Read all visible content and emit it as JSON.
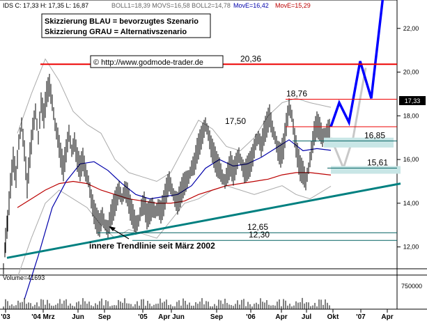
{
  "header": {
    "quote_text": "IDS C: 17,33 H: 17,35 L: 16,87",
    "bands_text": "BOLL1=18,39 MOVS=16,58 BOLL2=14,78",
    "ema1_text": "MovE=16,42",
    "ema2_text": "MovE=15,29"
  },
  "legend": {
    "line1": "Skizzierung BLAU = bevorzugtes Szenario",
    "line2": "Skizzierung GRAU = Alternativszenario"
  },
  "copyright": "© http://www.godmode-trader.de",
  "trendline_label": "innere Trendlinie seit März 2002",
  "volume_label": "Volume=41693",
  "volume_tick": "750000",
  "last_price_label": "17,33",
  "colors": {
    "candles": "#000000",
    "ema_fast": "#0000aa",
    "ema_slow": "#bb0000",
    "bollinger": "#aaaaaa",
    "resistance": "#ee0000",
    "support": "#006060",
    "trendline": "#008080",
    "scenario_blue": "#0000ff",
    "scenario_gray": "#c8c8c8",
    "zone_fill": "#c8e6e6"
  },
  "chart_data": {
    "type": "candlestick",
    "ylim": [
      11,
      23.3
    ],
    "y_ticks": [
      "22,00",
      "20,00",
      "18,00",
      "16,00",
      "14,00",
      "12,00"
    ],
    "y_tick_values": [
      22,
      20,
      18,
      16,
      14,
      12
    ],
    "x_tick_labels": [
      "'03",
      "'04 Mrz",
      "Jun",
      "Sep",
      "'05",
      "Apr Jun",
      "Sep",
      "'06",
      "Apr",
      "Jul",
      "Okt",
      "'07",
      "Apr"
    ],
    "horizontal_levels": [
      {
        "label": "20,36",
        "value": 20.36,
        "kind": "resistance"
      },
      {
        "label": "18,76",
        "value": 18.76,
        "kind": "resistance"
      },
      {
        "label": "17,50",
        "value": 17.5,
        "kind": "resistance"
      },
      {
        "label": "16,85",
        "value": 16.85,
        "kind": "support"
      },
      {
        "label": "15,61",
        "value": 15.61,
        "kind": "support"
      },
      {
        "label": "12,65",
        "value": 12.65,
        "kind": "support"
      },
      {
        "label": "12,30",
        "value": 12.3,
        "kind": "support"
      }
    ],
    "price_path": [
      [
        0,
        11.0
      ],
      [
        3,
        12.3
      ],
      [
        6,
        13.2
      ],
      [
        10,
        14.8
      ],
      [
        14,
        16.0
      ],
      [
        18,
        15.2
      ],
      [
        22,
        16.8
      ],
      [
        26,
        17.6
      ],
      [
        30,
        16.4
      ],
      [
        34,
        14.8
      ],
      [
        38,
        16.2
      ],
      [
        42,
        17.4
      ],
      [
        46,
        18.2
      ],
      [
        50,
        17.0
      ],
      [
        54,
        18.6
      ],
      [
        58,
        18.0
      ],
      [
        62,
        19.0
      ],
      [
        66,
        19.4
      ],
      [
        70,
        18.6
      ],
      [
        74,
        17.6
      ],
      [
        78,
        17.0
      ],
      [
        82,
        16.2
      ],
      [
        86,
        15.6
      ],
      [
        90,
        16.4
      ],
      [
        94,
        17.2
      ],
      [
        98,
        16.4
      ],
      [
        102,
        16.8
      ],
      [
        106,
        16.0
      ],
      [
        110,
        15.6
      ],
      [
        114,
        16.0
      ],
      [
        118,
        15.4
      ],
      [
        122,
        15.0
      ],
      [
        126,
        14.2
      ],
      [
        130,
        13.6
      ],
      [
        134,
        13.2
      ],
      [
        138,
        13.0
      ],
      [
        142,
        13.4
      ],
      [
        146,
        13.0
      ],
      [
        150,
        12.8
      ],
      [
        154,
        13.4
      ],
      [
        158,
        13.8
      ],
      [
        162,
        14.2
      ],
      [
        166,
        14.6
      ],
      [
        170,
        14.2
      ],
      [
        174,
        14.6
      ],
      [
        178,
        14.4
      ],
      [
        182,
        13.8
      ],
      [
        186,
        13.4
      ],
      [
        190,
        13.0
      ],
      [
        194,
        13.2
      ],
      [
        198,
        13.8
      ],
      [
        202,
        14.0
      ],
      [
        206,
        13.4
      ],
      [
        210,
        13.6
      ],
      [
        214,
        13.8
      ],
      [
        218,
        13.6
      ],
      [
        222,
        13.8
      ],
      [
        226,
        13.6
      ],
      [
        230,
        14.0
      ],
      [
        234,
        14.6
      ],
      [
        238,
        15.0
      ],
      [
        242,
        14.6
      ],
      [
        246,
        14.2
      ],
      [
        250,
        14.0
      ],
      [
        254,
        14.4
      ],
      [
        258,
        14.8
      ],
      [
        262,
        15.0
      ],
      [
        266,
        15.2
      ],
      [
        270,
        15.6
      ],
      [
        274,
        15.8
      ],
      [
        278,
        16.4
      ],
      [
        282,
        16.8
      ],
      [
        286,
        17.2
      ],
      [
        290,
        17.6
      ],
      [
        294,
        17.2
      ],
      [
        298,
        16.6
      ],
      [
        302,
        16.2
      ],
      [
        306,
        15.8
      ],
      [
        310,
        15.6
      ],
      [
        314,
        15.2
      ],
      [
        318,
        15.0
      ],
      [
        322,
        15.4
      ],
      [
        326,
        15.8
      ],
      [
        330,
        15.4
      ],
      [
        334,
        15.8
      ],
      [
        338,
        16.2
      ],
      [
        342,
        15.8
      ],
      [
        346,
        15.4
      ],
      [
        350,
        15.6
      ],
      [
        354,
        15.8
      ],
      [
        358,
        16.2
      ],
      [
        362,
        16.8
      ],
      [
        366,
        17.0
      ],
      [
        370,
        16.6
      ],
      [
        374,
        17.2
      ],
      [
        378,
        17.6
      ],
      [
        382,
        18.0
      ],
      [
        386,
        17.4
      ],
      [
        390,
        17.0
      ],
      [
        394,
        16.4
      ],
      [
        398,
        16.2
      ],
      [
        402,
        16.6
      ],
      [
        406,
        17.6
      ],
      [
        410,
        18.4
      ],
      [
        414,
        18.0
      ],
      [
        418,
        17.0
      ],
      [
        422,
        16.2
      ],
      [
        426,
        15.6
      ],
      [
        430,
        15.4
      ],
      [
        434,
        15.0
      ],
      [
        438,
        15.6
      ],
      [
        442,
        16.4
      ],
      [
        446,
        17.2
      ],
      [
        450,
        17.6
      ],
      [
        454,
        17.4
      ],
      [
        458,
        17.0
      ],
      [
        462,
        17.2
      ],
      [
        466,
        17.4
      ],
      [
        470,
        17.33
      ]
    ],
    "ema_fast": [
      [
        30,
        9.6
      ],
      [
        50,
        11.6
      ],
      [
        70,
        13.8
      ],
      [
        90,
        15.0
      ],
      [
        110,
        15.8
      ],
      [
        130,
        15.9
      ],
      [
        150,
        15.5
      ],
      [
        170,
        14.9
      ],
      [
        190,
        14.4
      ],
      [
        210,
        14.2
      ],
      [
        230,
        14.3
      ],
      [
        250,
        14.4
      ],
      [
        270,
        14.8
      ],
      [
        290,
        15.6
      ],
      [
        310,
        16.0
      ],
      [
        330,
        15.7
      ],
      [
        350,
        15.8
      ],
      [
        370,
        16.1
      ],
      [
        390,
        16.5
      ],
      [
        410,
        16.9
      ],
      [
        430,
        16.4
      ],
      [
        450,
        16.5
      ],
      [
        470,
        16.42
      ]
    ],
    "ema_slow": [
      [
        20,
        13.8
      ],
      [
        40,
        14.2
      ],
      [
        60,
        14.6
      ],
      [
        80,
        14.9
      ],
      [
        100,
        15.0
      ],
      [
        120,
        14.9
      ],
      [
        140,
        14.6
      ],
      [
        160,
        14.4
      ],
      [
        180,
        14.2
      ],
      [
        200,
        14.1
      ],
      [
        220,
        14.0
      ],
      [
        240,
        14.0
      ],
      [
        260,
        14.1
      ],
      [
        280,
        14.4
      ],
      [
        300,
        14.6
      ],
      [
        320,
        14.8
      ],
      [
        340,
        14.9
      ],
      [
        360,
        15.0
      ],
      [
        380,
        15.1
      ],
      [
        400,
        15.3
      ],
      [
        420,
        15.4
      ],
      [
        440,
        15.4
      ],
      [
        470,
        15.29
      ]
    ],
    "bollinger_upper": [
      [
        20,
        17.2
      ],
      [
        40,
        19.0
      ],
      [
        60,
        20.6
      ],
      [
        80,
        19.6
      ],
      [
        100,
        18.2
      ],
      [
        120,
        17.6
      ],
      [
        140,
        17.2
      ],
      [
        160,
        16.0
      ],
      [
        180,
        15.4
      ],
      [
        200,
        15.2
      ],
      [
        220,
        15.0
      ],
      [
        240,
        15.4
      ],
      [
        260,
        16.6
      ],
      [
        280,
        17.8
      ],
      [
        300,
        17.4
      ],
      [
        320,
        16.6
      ],
      [
        340,
        16.4
      ],
      [
        360,
        17.0
      ],
      [
        380,
        18.0
      ],
      [
        400,
        18.6
      ],
      [
        420,
        18.8
      ],
      [
        440,
        18.6
      ],
      [
        470,
        18.39
      ]
    ],
    "bollinger_lower": [
      [
        20,
        10.6
      ],
      [
        40,
        12.4
      ],
      [
        60,
        14.0
      ],
      [
        80,
        14.6
      ],
      [
        100,
        14.2
      ],
      [
        120,
        13.8
      ],
      [
        140,
        13.0
      ],
      [
        160,
        12.4
      ],
      [
        180,
        12.8
      ],
      [
        200,
        12.6
      ],
      [
        220,
        12.4
      ],
      [
        240,
        13.2
      ],
      [
        260,
        14.0
      ],
      [
        280,
        14.2
      ],
      [
        300,
        14.6
      ],
      [
        320,
        14.8
      ],
      [
        340,
        14.6
      ],
      [
        360,
        14.4
      ],
      [
        380,
        14.6
      ],
      [
        400,
        14.8
      ],
      [
        420,
        14.4
      ],
      [
        440,
        14.2
      ],
      [
        470,
        14.78
      ]
    ],
    "trendline": [
      [
        5,
        11.5
      ],
      [
        570,
        14.9
      ]
    ],
    "scenario_blue": [
      [
        470,
        17.5
      ],
      [
        482,
        18.6
      ],
      [
        496,
        17.7
      ],
      [
        512,
        20.5
      ],
      [
        528,
        18.8
      ],
      [
        545,
        23.5
      ]
    ],
    "scenario_gray": [
      [
        470,
        17.0
      ],
      [
        488,
        15.6
      ],
      [
        502,
        17.0
      ],
      [
        520,
        20.2
      ]
    ],
    "zones": [
      {
        "x0": 460,
        "x1": 560,
        "y_top": 17.0,
        "y_bottom": 16.55
      },
      {
        "x0": 470,
        "x1": 570,
        "y_top": 15.7,
        "y_bottom": 15.35
      }
    ],
    "volume_samples": [
      [
        20,
        0.2
      ],
      [
        60,
        0.25
      ],
      [
        100,
        0.3
      ],
      [
        140,
        0.2
      ],
      [
        180,
        0.25
      ],
      [
        220,
        0.15
      ],
      [
        260,
        0.2
      ],
      [
        300,
        0.35
      ],
      [
        340,
        0.2
      ],
      [
        380,
        0.3
      ],
      [
        420,
        0.25
      ],
      [
        460,
        0.18
      ]
    ]
  }
}
